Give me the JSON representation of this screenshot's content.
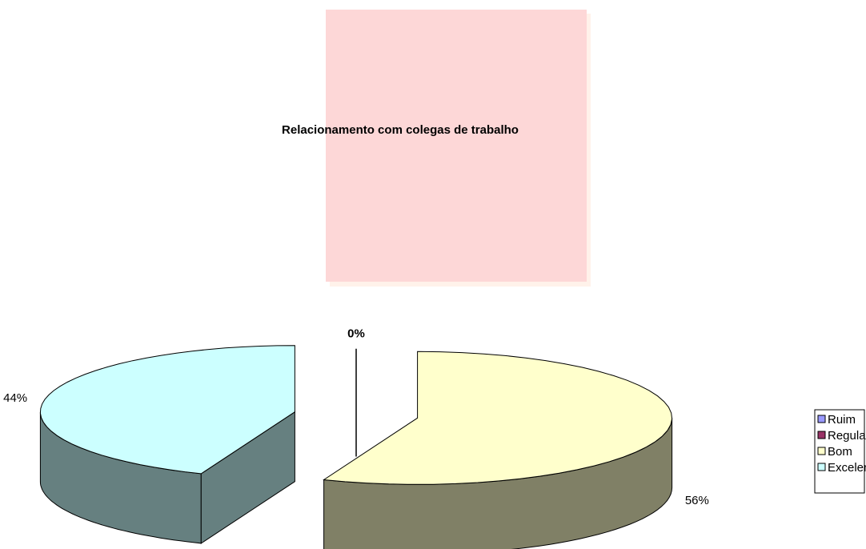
{
  "chart_data": {
    "type": "pie",
    "title": "Relacionamento com colegas de trabalho",
    "categories": [
      "Ruim",
      "Regular",
      "Bom",
      "Excelente"
    ],
    "values": [
      0,
      0,
      56,
      44
    ],
    "value_labels": [
      "0%",
      null,
      "56%",
      "44%"
    ],
    "colors": [
      "#9999FF",
      "#993366",
      "#FFFFCC",
      "#CCFFFF"
    ],
    "side_colors": [
      "#66668F",
      "#6B2447",
      "#808066",
      "#668080"
    ],
    "legend": "right"
  }
}
